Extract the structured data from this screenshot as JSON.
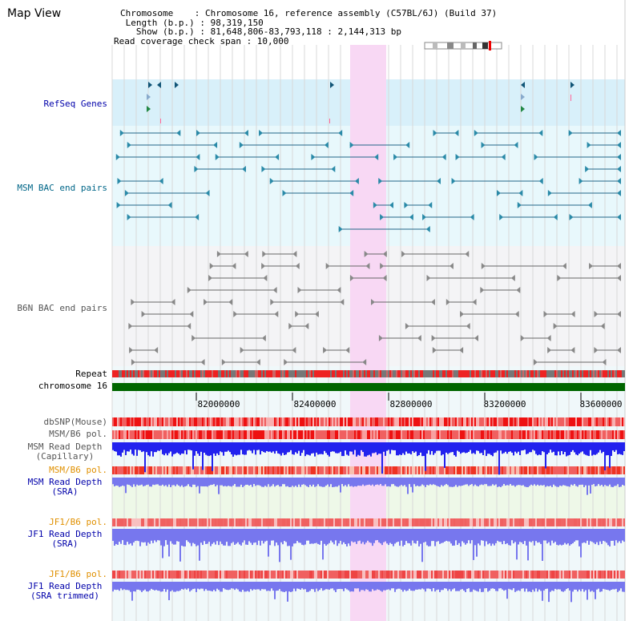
{
  "header": {
    "title": "Map View",
    "chromosome_line": "Chromosome    : Chromosome 16, reference assembly (C57BL/6J) (Build 37)",
    "length_line": " Length (b.p.) : 98,319,150",
    "show_line": "   Show (b.p.) : 81,648,806-83,793,118 : 2,144,313 bp",
    "coverage_line": "Read coverage check span : 10,000"
  },
  "tracks": {
    "refseq": "RefSeq Genes",
    "msm_bac": "MSM BAC end pairs",
    "b6n_bac": "B6N BAC end pairs",
    "repeat": "Repeat",
    "chromosome": "chromosome 16",
    "dbsnp": "dbSNP(Mouse)",
    "msm_b6_pol_1": "MSM/B6 pol.",
    "msm_depth_cap_1": "MSM Read Depth",
    "msm_depth_cap_2": "(Capillary)",
    "msm_b6_pol_2": "MSM/B6 pol.",
    "msm_depth_sra_1": "MSM Read Depth",
    "msm_depth_sra_2": "(SRA)",
    "jf1_b6_pol_1": "JF1/B6 pol.",
    "jf1_depth_sra_1": "JF1 Read Depth",
    "jf1_depth_sra_2": "(SRA)",
    "jf1_b6_pol_2": "JF1/B6 pol.",
    "jf1_depth_trim_1": "JF1 Read Depth",
    "jf1_depth_trim_2": "(SRA trimmed)"
  },
  "axis": {
    "ticks": [
      "82000000",
      "82400000",
      "82800000",
      "83200000",
      "83600000"
    ]
  },
  "colors": {
    "label_blue": "#0000aa",
    "label_teal": "#006688",
    "label_gray": "#555555",
    "label_orange": "#e09000",
    "refseq_bg": "#d8f0fa",
    "msm_bg": "#e8f8fc",
    "highlight": "#f8d8f4",
    "chromosome_green": "#006600",
    "depth_blue": "#2222ee",
    "depth_light": "#7777ee"
  }
}
